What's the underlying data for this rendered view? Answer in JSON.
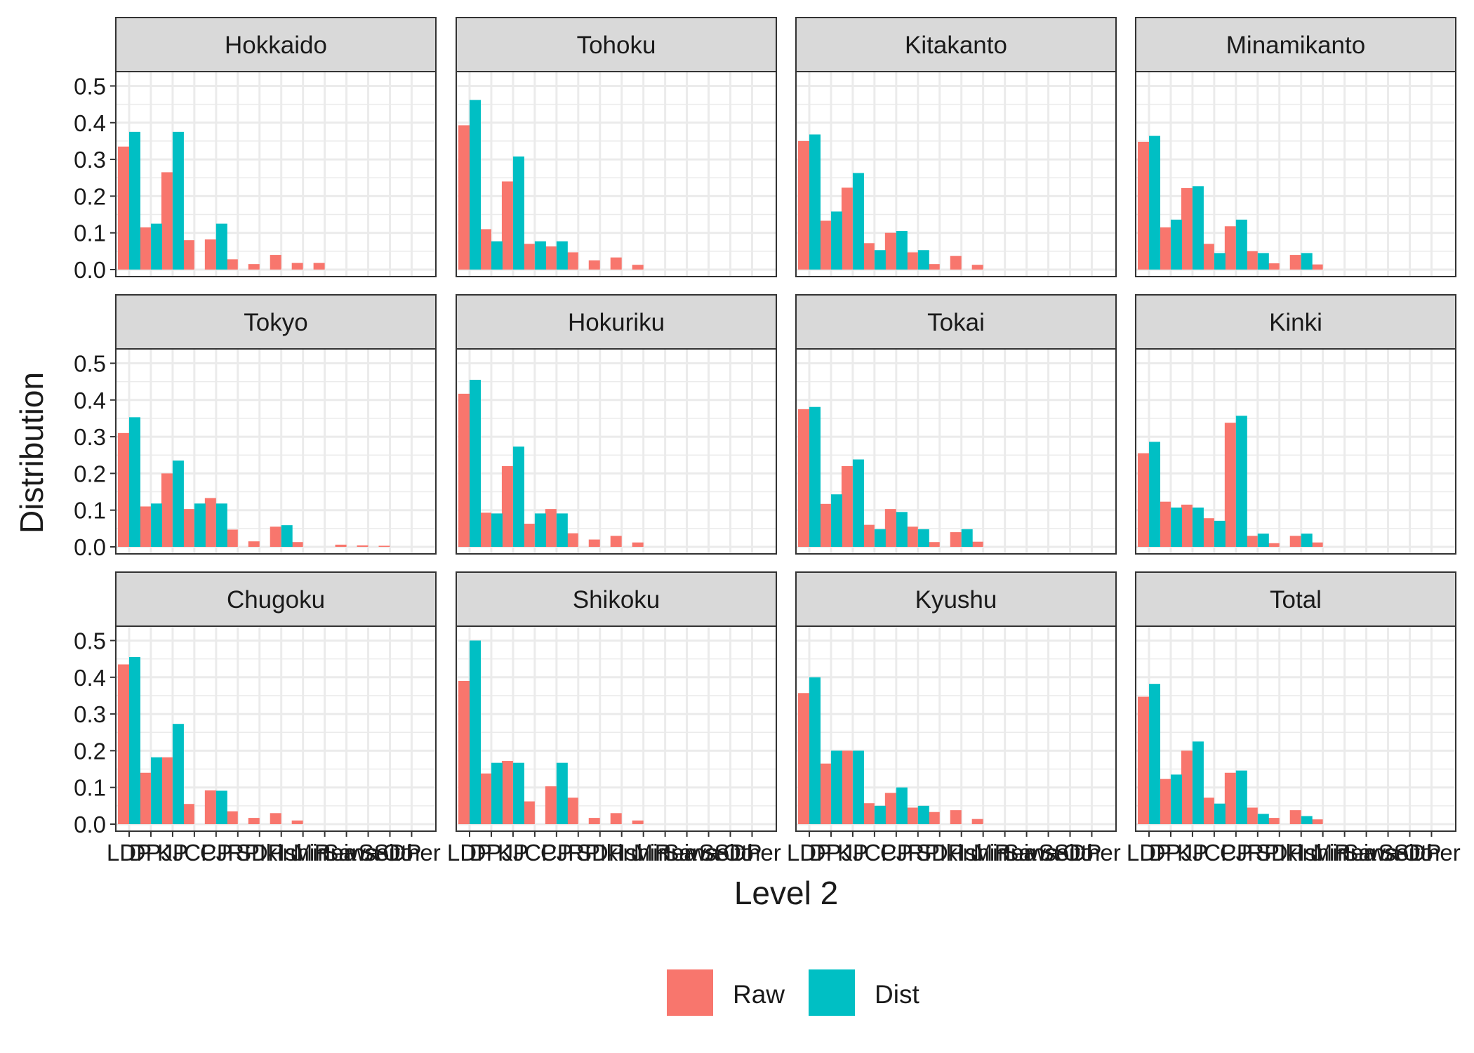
{
  "chart_data": {
    "type": "bar",
    "facet_layout": "4x3 grid of panels sharing the same axes",
    "xlabel": "Level 2",
    "ylabel": "Distribution",
    "ylim": [
      0,
      0.52
    ],
    "yticks": [
      "0.0",
      "0.1",
      "0.2",
      "0.3",
      "0.4",
      "0.5"
    ],
    "categories": [
      "LDP",
      "DPJ",
      "KP",
      "JCP",
      "CP",
      "JRP",
      "SDP",
      "Ikiru",
      "Ishin",
      "Minna",
      "Reiwa",
      "Sanseito",
      "SSDP",
      "Other"
    ],
    "grid": true,
    "legend": {
      "position": "bottom",
      "entries": [
        "Raw",
        "Dist"
      ]
    },
    "series_colors": {
      "Raw": "#F8766D",
      "Dist": "#00BFC4"
    },
    "panels": [
      {
        "title": "Hokkaido",
        "series": [
          {
            "name": "Raw",
            "values": [
              0.335,
              0.115,
              0.265,
              0.08,
              0.082,
              0.028,
              0.015,
              0.04,
              0.018,
              0.018,
              0,
              0,
              0,
              0
            ]
          },
          {
            "name": "Dist",
            "values": [
              0.375,
              0.125,
              0.375,
              0,
              0.125,
              0,
              0,
              0,
              0,
              0,
              0,
              0,
              0,
              0
            ]
          }
        ]
      },
      {
        "title": "Tohoku",
        "series": [
          {
            "name": "Raw",
            "values": [
              0.393,
              0.11,
              0.24,
              0.07,
              0.063,
              0.047,
              0.025,
              0.033,
              0.013,
              0,
              0,
              0,
              0,
              0
            ]
          },
          {
            "name": "Dist",
            "values": [
              0.462,
              0.077,
              0.308,
              0.077,
              0.077,
              0,
              0,
              0,
              0,
              0,
              0,
              0,
              0,
              0
            ]
          }
        ]
      },
      {
        "title": "Kitakanto",
        "series": [
          {
            "name": "Raw",
            "values": [
              0.35,
              0.133,
              0.223,
              0.072,
              0.1,
              0.047,
              0.015,
              0.037,
              0.013,
              0,
              0,
              0,
              0,
              0
            ]
          },
          {
            "name": "Dist",
            "values": [
              0.368,
              0.158,
              0.263,
              0.053,
              0.105,
              0.053,
              0,
              0,
              0,
              0,
              0,
              0,
              0,
              0
            ]
          }
        ]
      },
      {
        "title": "Minamikanto",
        "series": [
          {
            "name": "Raw",
            "values": [
              0.348,
              0.115,
              0.222,
              0.07,
              0.118,
              0.05,
              0.017,
              0.04,
              0.014,
              0,
              0,
              0,
              0,
              0
            ]
          },
          {
            "name": "Dist",
            "values": [
              0.364,
              0.136,
              0.227,
              0.045,
              0.136,
              0.045,
              0,
              0.045,
              0,
              0,
              0,
              0,
              0,
              0
            ]
          }
        ]
      },
      {
        "title": "Tokyo",
        "series": [
          {
            "name": "Raw",
            "values": [
              0.31,
              0.11,
              0.2,
              0.103,
              0.133,
              0.047,
              0.015,
              0.055,
              0.013,
              0,
              0.006,
              0.004,
              0.003,
              0
            ]
          },
          {
            "name": "Dist",
            "values": [
              0.353,
              0.118,
              0.235,
              0.118,
              0.118,
              0,
              0,
              0.059,
              0,
              0,
              0,
              0,
              0,
              0
            ]
          }
        ]
      },
      {
        "title": "Hokuriku",
        "series": [
          {
            "name": "Raw",
            "values": [
              0.417,
              0.093,
              0.22,
              0.063,
              0.103,
              0.037,
              0.02,
              0.03,
              0.012,
              0,
              0,
              0,
              0,
              0
            ]
          },
          {
            "name": "Dist",
            "values": [
              0.455,
              0.091,
              0.273,
              0.091,
              0.091,
              0,
              0,
              0,
              0,
              0,
              0,
              0,
              0,
              0
            ]
          }
        ]
      },
      {
        "title": "Tokai",
        "series": [
          {
            "name": "Raw",
            "values": [
              0.375,
              0.117,
              0.22,
              0.06,
              0.103,
              0.055,
              0.013,
              0.04,
              0.014,
              0,
              0,
              0,
              0,
              0
            ]
          },
          {
            "name": "Dist",
            "values": [
              0.381,
              0.143,
              0.238,
              0.048,
              0.095,
              0.048,
              0,
              0.048,
              0,
              0,
              0,
              0,
              0,
              0
            ]
          }
        ]
      },
      {
        "title": "Kinki",
        "series": [
          {
            "name": "Raw",
            "values": [
              0.255,
              0.123,
              0.115,
              0.078,
              0.338,
              0.03,
              0.01,
              0.03,
              0.012,
              0,
              0,
              0,
              0,
              0
            ]
          },
          {
            "name": "Dist",
            "values": [
              0.286,
              0.107,
              0.107,
              0.071,
              0.357,
              0.036,
              0,
              0.036,
              0,
              0,
              0,
              0,
              0,
              0
            ]
          }
        ]
      },
      {
        "title": "Chugoku",
        "series": [
          {
            "name": "Raw",
            "values": [
              0.435,
              0.14,
              0.182,
              0.055,
              0.092,
              0.035,
              0.017,
              0.03,
              0.01,
              0,
              0,
              0,
              0,
              0
            ]
          },
          {
            "name": "Dist",
            "values": [
              0.455,
              0.182,
              0.273,
              0,
              0.091,
              0,
              0,
              0,
              0,
              0,
              0,
              0,
              0,
              0
            ]
          }
        ]
      },
      {
        "title": "Shikoku",
        "series": [
          {
            "name": "Raw",
            "values": [
              0.39,
              0.138,
              0.172,
              0.062,
              0.103,
              0.072,
              0.017,
              0.03,
              0.01,
              0,
              0,
              0,
              0,
              0
            ]
          },
          {
            "name": "Dist",
            "values": [
              0.5,
              0.167,
              0.167,
              0,
              0.167,
              0,
              0,
              0,
              0,
              0,
              0,
              0,
              0,
              0
            ]
          }
        ]
      },
      {
        "title": "Kyushu",
        "series": [
          {
            "name": "Raw",
            "values": [
              0.357,
              0.165,
              0.2,
              0.057,
              0.085,
              0.045,
              0.033,
              0.038,
              0.014,
              0,
              0,
              0,
              0,
              0
            ]
          },
          {
            "name": "Dist",
            "values": [
              0.4,
              0.2,
              0.2,
              0.05,
              0.1,
              0.05,
              0,
              0,
              0,
              0,
              0,
              0,
              0,
              0
            ]
          }
        ]
      },
      {
        "title": "Total",
        "series": [
          {
            "name": "Raw",
            "values": [
              0.347,
              0.123,
              0.2,
              0.072,
              0.14,
              0.045,
              0.017,
              0.038,
              0.013,
              0,
              0,
              0,
              0,
              0
            ]
          },
          {
            "name": "Dist",
            "values": [
              0.382,
              0.135,
              0.225,
              0.056,
              0.146,
              0.028,
              0,
              0.022,
              0,
              0,
              0,
              0,
              0,
              0
            ]
          }
        ]
      }
    ]
  }
}
